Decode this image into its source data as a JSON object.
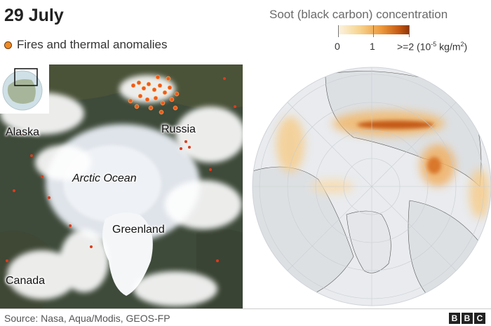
{
  "header": {
    "date": "29 July",
    "fires_legend": "Fires and thermal anomalies"
  },
  "soot_legend": {
    "title": "Soot (black carbon) concentration",
    "tick_labels": [
      "0",
      "1",
      ">=2 (10-5 kg/m2)"
    ],
    "min_label": "0",
    "mid_label": "1",
    "max_label_prefix": ">=2 (10",
    "max_label_exp": "-5",
    "max_label_unit": " kg/m",
    "max_label_unit_exp": "2",
    "max_label_suffix": ")",
    "colors": [
      "#fbf4e3",
      "#f6d48e",
      "#ed9a3c",
      "#c45a14",
      "#8e3308"
    ]
  },
  "left_map": {
    "labels": {
      "alaska": "Alaska",
      "russia": "Russia",
      "arctic_ocean": "Arctic Ocean",
      "greenland": "Greenland",
      "canada": "Canada"
    },
    "fire_color": "#f05a1e"
  },
  "footer": {
    "source": "Source: Nasa, Aqua/Modis, GEOS-FP",
    "logo": [
      "B",
      "B",
      "C"
    ]
  }
}
